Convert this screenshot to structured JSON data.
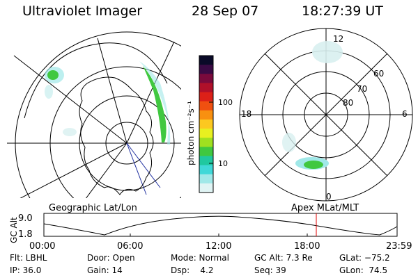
{
  "header": {
    "instrument": "Ultraviolet Imager",
    "date": "28 Sep 07",
    "time": "18:27:39 UT"
  },
  "colorbar": {
    "unit_label": "photon cm⁻²s⁻¹",
    "ticks": [
      "100",
      "10"
    ],
    "colors": [
      "#0a0a28",
      "#3a0a44",
      "#7a0a3c",
      "#b0102a",
      "#dc2018",
      "#f05010",
      "#f89010",
      "#fcc820",
      "#e8f020",
      "#a0e020",
      "#40c840",
      "#20c8a0",
      "#40d8d8",
      "#a0e8e8",
      "#e0f4f4"
    ]
  },
  "geo_map": {
    "label": "Geographic Lat/Lon"
  },
  "polar_plot": {
    "label": "Apex MLat/MLT",
    "mlt_labels": {
      "top": "12",
      "bottom": "0",
      "left": "18",
      "right": "6"
    },
    "lat_labels": [
      "60",
      "70",
      "80"
    ]
  },
  "altitude_plot": {
    "ylabel": "GC Alt",
    "y_ticks": [
      "9.0",
      "1.8"
    ],
    "x_ticks": [
      "00:00",
      "06:00",
      "12:00",
      "18:00",
      "23:59"
    ],
    "marker_time": "18:27",
    "marker_color": "#e00000"
  },
  "status": {
    "filter": "Flt: LBHL",
    "door": "Door: Open",
    "mode": "Mode: Normal",
    "gc_alt": "GC Alt: 7.3 Re",
    "glat": "GLat: −75.2",
    "ip": "IP: 36.0",
    "gain": "Gain: 14",
    "dsp": "Dsp:    4.2",
    "seq": "Seq: 39",
    "glon": "GLon:  74.5"
  }
}
